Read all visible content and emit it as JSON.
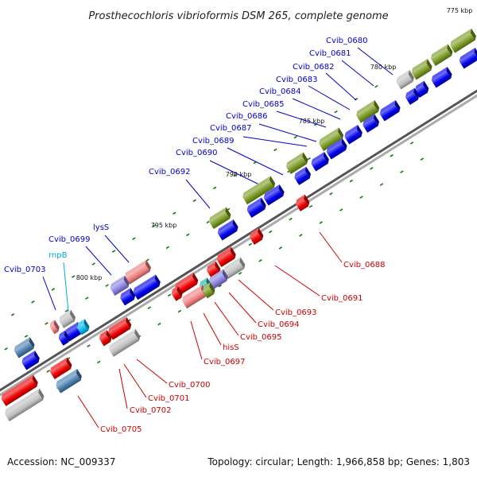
{
  "title": "Prosthecochloris vibrioformis DSM 265, complete genome",
  "accession": "Accession: NC_009337",
  "summary": "Topology: circular; Length: 1,966,858 bp; Genes: 1,803",
  "colors": {
    "forward_cds": "#0000ee",
    "reverse_cds": "#ee0000",
    "rna": "#00bbee",
    "highlight_green": "#7a9a22",
    "highlight_gray": "#c0c0c0",
    "highlight_red_pink": "#f08080",
    "highlight_purple": "#8a80e0",
    "steel_blue": "#4a7fb0",
    "forward_label": "#0000cc",
    "reverse_label": "#cc0000",
    "rna_label": "#00aadd",
    "backbone": "#7a7a7a",
    "tick_mark": "#117711"
  },
  "ticks": [
    {
      "label": "775 kbp"
    },
    {
      "label": "780 kbp"
    },
    {
      "label": "785 kbp"
    },
    {
      "label": "790 kbp"
    },
    {
      "label": "795 kbp"
    },
    {
      "label": "800 kbp"
    }
  ],
  "forward_labels": [
    {
      "name": "Cvib_0680"
    },
    {
      "name": "Cvib_0681"
    },
    {
      "name": "Cvib_0682"
    },
    {
      "name": "Cvib_0683"
    },
    {
      "name": "Cvib_0684"
    },
    {
      "name": "Cvib_0685"
    },
    {
      "name": "Cvib_0686"
    },
    {
      "name": "Cvib_0687"
    },
    {
      "name": "Cvib_0689"
    },
    {
      "name": "Cvib_0690"
    },
    {
      "name": "Cvib_0692"
    },
    {
      "name": "lysS"
    },
    {
      "name": "Cvib_0699"
    },
    {
      "name": "rnpB"
    },
    {
      "name": "Cvib_0703"
    }
  ],
  "reverse_labels": [
    {
      "name": "Cvib_0688"
    },
    {
      "name": "Cvib_0691"
    },
    {
      "name": "Cvib_0693"
    },
    {
      "name": "Cvib_0694"
    },
    {
      "name": "Cvib_0695"
    },
    {
      "name": "hisS"
    },
    {
      "name": "Cvib_0697"
    },
    {
      "name": "Cvib_0700"
    },
    {
      "name": "Cvib_0701"
    },
    {
      "name": "Cvib_0702"
    },
    {
      "name": "Cvib_0705"
    }
  ]
}
